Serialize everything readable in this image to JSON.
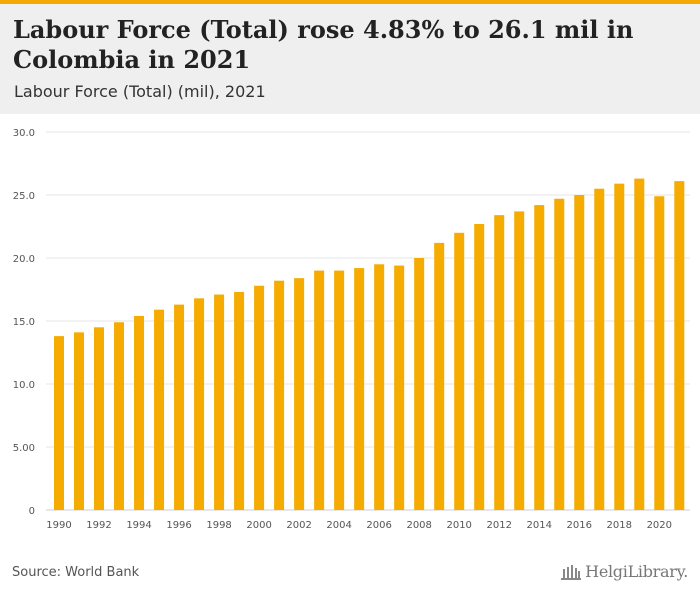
{
  "header": {
    "title": "Labour Force (Total) rose 4.83% to 26.1 mil in Colombia in 2021",
    "subtitle": "Labour Force (Total) (mil), 2021"
  },
  "footer": {
    "source": "Source: World Bank",
    "logo_text": "HelgiLibrary."
  },
  "colors": {
    "bar": "#f5ab00",
    "accent": "#f5a800",
    "header_bg": "#efefef",
    "grid": "#e6e6e6",
    "axis_text": "#555555"
  },
  "chart_data": {
    "type": "bar",
    "title": "Labour Force (Total) (mil), 2021",
    "xlabel": "",
    "ylabel": "",
    "ylim": [
      0,
      30
    ],
    "yticks": [
      0,
      5,
      10,
      15,
      20,
      25,
      30
    ],
    "ytick_labels": [
      "0",
      "5.00",
      "10.0",
      "15.0",
      "20.0",
      "25.0",
      "30.0"
    ],
    "grid": true,
    "categories": [
      "1990",
      "1991",
      "1992",
      "1993",
      "1994",
      "1995",
      "1996",
      "1997",
      "1998",
      "1999",
      "2000",
      "2001",
      "2002",
      "2003",
      "2004",
      "2005",
      "2006",
      "2007",
      "2008",
      "2009",
      "2010",
      "2011",
      "2012",
      "2013",
      "2014",
      "2015",
      "2016",
      "2017",
      "2018",
      "2019",
      "2020",
      "2021"
    ],
    "xtick_labels": [
      "1990",
      "1992",
      "1994",
      "1996",
      "1998",
      "2000",
      "2002",
      "2004",
      "2006",
      "2008",
      "2010",
      "2012",
      "2014",
      "2016",
      "2018",
      "2020"
    ],
    "values": [
      13.8,
      14.1,
      14.5,
      14.9,
      15.4,
      15.9,
      16.3,
      16.8,
      17.1,
      17.3,
      17.8,
      18.2,
      18.4,
      19.0,
      19.0,
      19.2,
      19.5,
      19.4,
      20.0,
      21.2,
      22.0,
      22.7,
      23.4,
      23.7,
      24.2,
      24.7,
      25.0,
      25.5,
      25.9,
      26.3,
      24.9,
      26.1
    ]
  }
}
